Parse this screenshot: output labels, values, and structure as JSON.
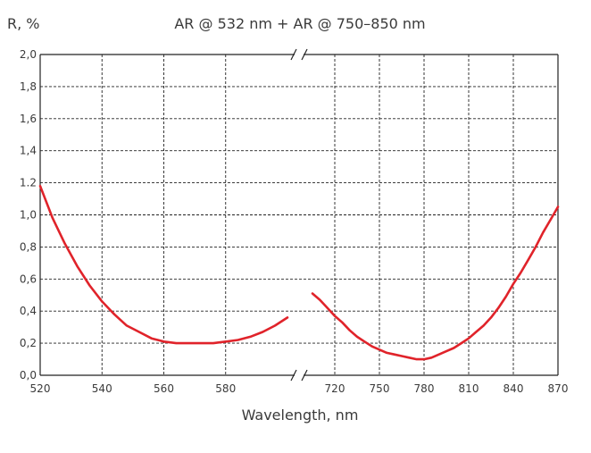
{
  "chart_data": {
    "type": "line",
    "title": "AR @ 532 nm + AR @ 750–850 nm",
    "ylabel": "R, %",
    "xlabel": "Wavelength, nm",
    "ylim": [
      0,
      2.0
    ],
    "y_ticks": [
      "0,0",
      "0,2",
      "0,4",
      "0,6",
      "0,8",
      "1,0",
      "1.2",
      "1,4",
      "1,6",
      "1,8",
      "2,0"
    ],
    "x_tick_labels_left": [
      "520",
      "540",
      "560",
      "580"
    ],
    "x_tick_labels_right": [
      "720",
      "750",
      "780",
      "810",
      "840",
      "870"
    ],
    "axis_break": true,
    "grid": true,
    "color": "#e0232a",
    "series": [
      {
        "segment": "left",
        "x": [
          520,
          524,
          528,
          532,
          536,
          540,
          544,
          548,
          552,
          556,
          560,
          564,
          568,
          572,
          576,
          580,
          584,
          588,
          592,
          596,
          600
        ],
        "y": [
          1.18,
          0.98,
          0.82,
          0.68,
          0.56,
          0.46,
          0.38,
          0.31,
          0.27,
          0.23,
          0.21,
          0.2,
          0.2,
          0.2,
          0.2,
          0.21,
          0.22,
          0.24,
          0.27,
          0.31,
          0.36
        ]
      },
      {
        "segment": "right",
        "x": [
          705,
          710,
          715,
          720,
          725,
          730,
          735,
          740,
          745,
          750,
          755,
          760,
          765,
          770,
          775,
          780,
          785,
          790,
          795,
          800,
          805,
          810,
          815,
          820,
          825,
          830,
          835,
          840,
          845,
          850,
          855,
          860,
          865,
          870
        ],
        "y": [
          0.51,
          0.47,
          0.42,
          0.37,
          0.33,
          0.28,
          0.24,
          0.21,
          0.18,
          0.16,
          0.14,
          0.13,
          0.12,
          0.11,
          0.1,
          0.1,
          0.11,
          0.13,
          0.15,
          0.17,
          0.2,
          0.23,
          0.27,
          0.31,
          0.36,
          0.42,
          0.49,
          0.57,
          0.64,
          0.72,
          0.8,
          0.89,
          0.97,
          1.05
        ]
      }
    ]
  }
}
